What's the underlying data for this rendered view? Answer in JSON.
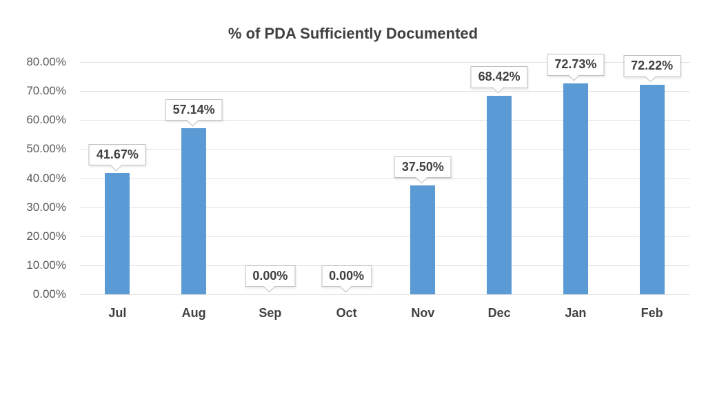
{
  "chart_data": {
    "type": "bar",
    "title": "% of PDA Sufficiently Documented",
    "categories": [
      "Jul",
      "Aug",
      "Sep",
      "Oct",
      "Nov",
      "Dec",
      "Jan",
      "Feb"
    ],
    "values": [
      41.67,
      57.14,
      0,
      0,
      37.5,
      68.42,
      72.73,
      72.22
    ],
    "data_labels": [
      "41.67%",
      "57.14%",
      "0.00%",
      "0.00%",
      "37.50%",
      "68.42%",
      "72.73%",
      "72.22%"
    ],
    "y_ticks": [
      "80.00%",
      "70.00%",
      "60.00%",
      "50.00%",
      "40.00%",
      "30.00%",
      "20.00%",
      "10.00%",
      "0.00%"
    ],
    "ylim": [
      0,
      80
    ],
    "xlabel": "",
    "ylabel": "",
    "grid": true,
    "legend": "none",
    "bar_color": "#5B9BD5",
    "gridline_color": "#E2E2E2",
    "text_color": "#404040",
    "axis_text_color": "#595959",
    "callout_border_color": "#BFBFBF",
    "background_color": "#FFFFFF"
  }
}
